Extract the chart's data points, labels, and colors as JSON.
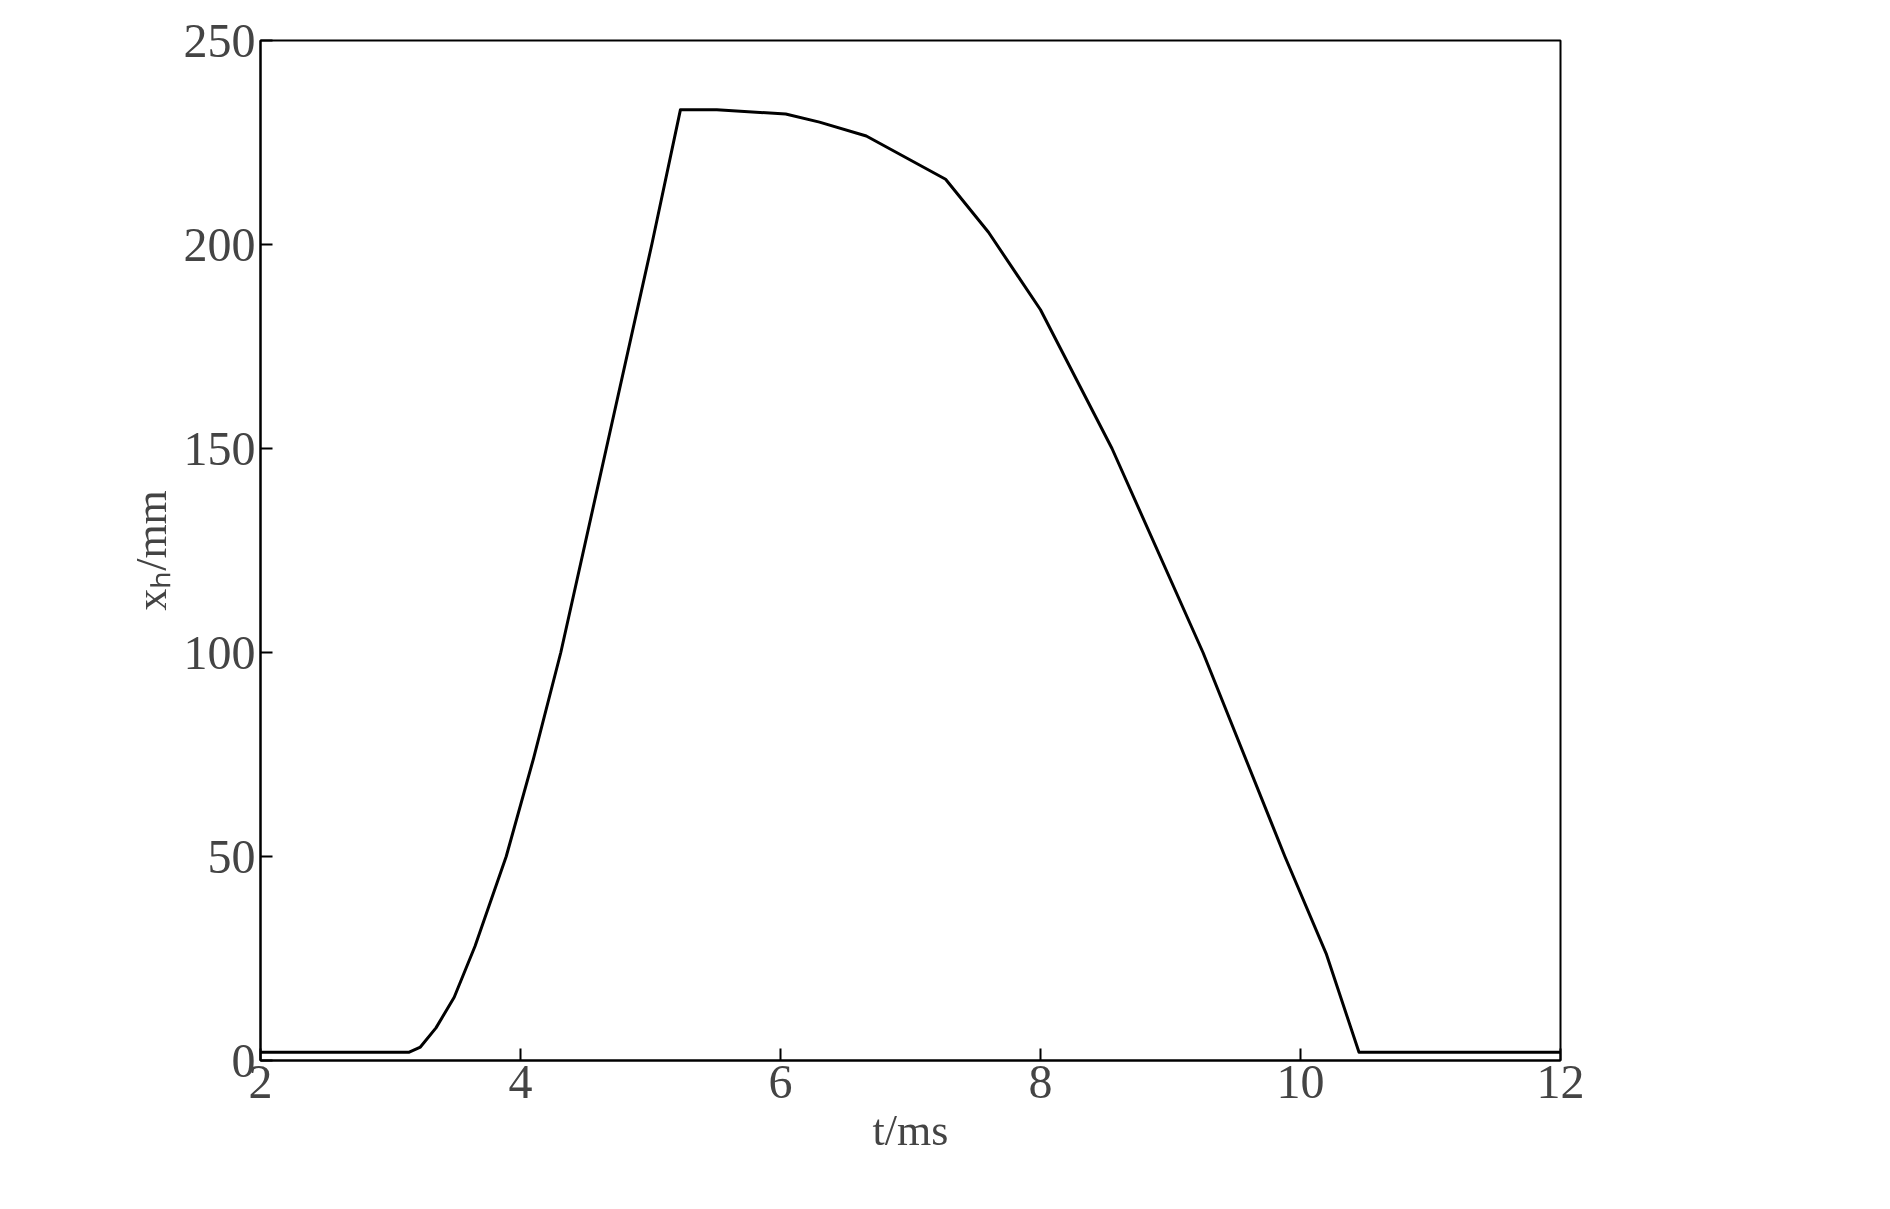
{
  "chart_data": {
    "type": "line",
    "xlabel": "t/ms",
    "ylabel": "xₕ/mm",
    "x": [
      2,
      3.0,
      3.14,
      3.23,
      3.35,
      3.49,
      3.65,
      3.89,
      4.1,
      4.31,
      4.66,
      5.01,
      5.23,
      5.51,
      6.04,
      6.3,
      6.66,
      7.27,
      7.6,
      8.0,
      8.55,
      9.25,
      9.88,
      10.2,
      10.45,
      11,
      12
    ],
    "series": [
      {
        "color": "#000000",
        "values": [
          2,
          2,
          2,
          3.3,
          8,
          15.5,
          28,
          50,
          74,
          100,
          150,
          200,
          233,
          233,
          232,
          230,
          226.6,
          216,
          203,
          184,
          150,
          100,
          50,
          26,
          2,
          2,
          2
        ]
      }
    ],
    "xlim": [
      2,
      12
    ],
    "ylim": [
      0,
      250
    ],
    "xticks": [
      2,
      4,
      6,
      8,
      10,
      12
    ],
    "yticks": [
      0,
      50,
      100,
      150,
      200,
      250
    ],
    "grid": false,
    "marker": "none",
    "line_style": "solid"
  }
}
